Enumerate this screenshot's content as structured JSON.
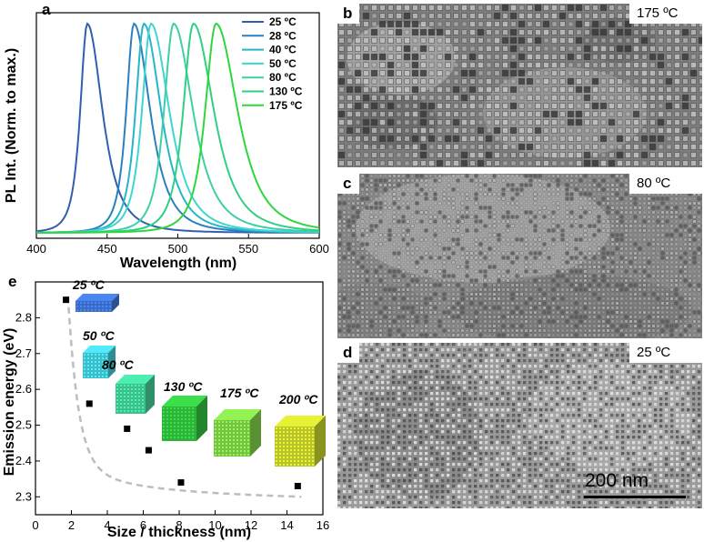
{
  "figure": {
    "panels": {
      "a": "a",
      "b": "b",
      "c": "c",
      "d": "d",
      "e": "e"
    }
  },
  "chart_data": [
    {
      "id": "a",
      "type": "line",
      "xlabel": "Wavelength (nm)",
      "ylabel": "PL Int. (Norm. to max.)",
      "xlim": [
        400,
        600
      ],
      "x_ticks": [
        "400",
        "450",
        "500",
        "550",
        "600"
      ],
      "legend_position": "top-right",
      "series": [
        {
          "name": "25 ºC",
          "peak": 436,
          "color": "#2f5fae"
        },
        {
          "name": "28 ºC",
          "peak": 469,
          "color": "#2a7fbf"
        },
        {
          "name": "40 ºC",
          "peak": 476,
          "color": "#26b5c9"
        },
        {
          "name": "50 ºC",
          "peak": 481,
          "color": "#3fd6d0"
        },
        {
          "name": "80 ºC",
          "peak": 497,
          "color": "#3ecfa6"
        },
        {
          "name": "130 ºC",
          "peak": 511,
          "color": "#2fcf86"
        },
        {
          "name": "175 ºC",
          "peak": 527,
          "color": "#2fd63f"
        }
      ]
    },
    {
      "id": "e",
      "type": "scatter",
      "xlabel": "Size / thickness (nm)",
      "ylabel": "Emission energy (eV)",
      "xlim": [
        0,
        16
      ],
      "ylim": [
        2.25,
        2.9
      ],
      "x_ticks": [
        "0",
        "2",
        "4",
        "6",
        "8",
        "10",
        "12",
        "14",
        "16"
      ],
      "y_ticks": [
        "2.3",
        "2.4",
        "2.5",
        "2.6",
        "2.7",
        "2.8"
      ],
      "points": [
        {
          "x": 1.7,
          "y": 2.85
        },
        {
          "x": 3.0,
          "y": 2.56
        },
        {
          "x": 5.1,
          "y": 2.49
        },
        {
          "x": 6.3,
          "y": 2.43
        },
        {
          "x": 8.1,
          "y": 2.34
        },
        {
          "x": 14.6,
          "y": 2.33
        }
      ],
      "fit_curve": "dashed grey guide",
      "annotations": [
        {
          "label": "25 ºC",
          "color": "#3a6cc4"
        },
        {
          "label": "50 ºC",
          "color": "#3fbcc8"
        },
        {
          "label": "80 ºC",
          "color": "#3dbf8c"
        },
        {
          "label": "130 ºC",
          "color": "#2fb23a"
        },
        {
          "label": "175 ºC",
          "color": "#76c243"
        },
        {
          "label": "200 ºC",
          "color": "#b8c22a"
        }
      ]
    }
  ],
  "tem": {
    "b": {
      "temp": "175 ºC"
    },
    "c": {
      "temp": "80 ºC"
    },
    "d": {
      "temp": "25 ºC",
      "scale_bar": "200 nm"
    }
  }
}
